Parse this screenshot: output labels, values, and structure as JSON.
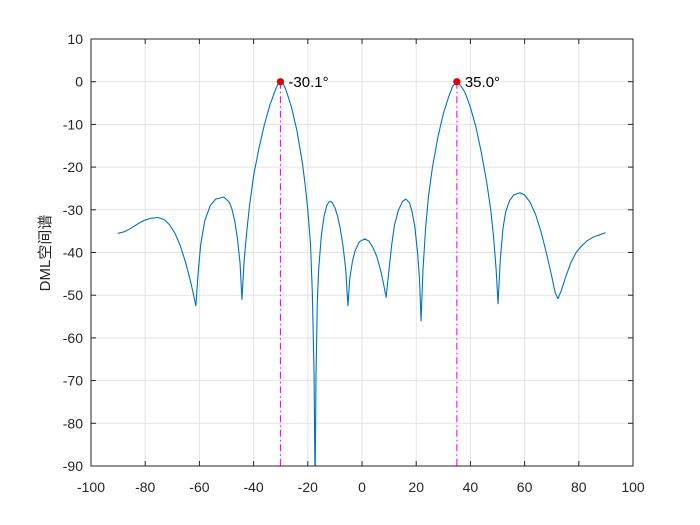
{
  "chart_data": {
    "type": "line",
    "ylabel": "DML空间谱",
    "xlim": [
      -100,
      100
    ],
    "ylim": [
      -90,
      10
    ],
    "xticks": [
      -100,
      -80,
      -60,
      -40,
      -20,
      0,
      20,
      40,
      60,
      80,
      100
    ],
    "yticks": [
      10,
      0,
      -10,
      -20,
      -30,
      -40,
      -50,
      -60,
      -70,
      -80,
      -90
    ],
    "grid": true,
    "legend": false,
    "series": [
      {
        "color": "#0072BD",
        "x": [
          -90,
          -88,
          -86,
          -84,
          -82,
          -80,
          -78,
          -75.3,
          -73,
          -71,
          -69,
          -67,
          -65,
          -63,
          -61.3,
          -60.5,
          -59.5,
          -58,
          -56,
          -54,
          -51,
          -49,
          -48,
          -47,
          -46,
          -45,
          -44.3,
          -43.5,
          -42.5,
          -41.5,
          -40,
          -38,
          -36,
          -34,
          -32,
          -31,
          -30.1,
          -29,
          -28,
          -26,
          -24,
          -22,
          -21,
          -20,
          -19,
          -18.3,
          -17.7,
          -17.3,
          -17,
          -16.5,
          -16,
          -15,
          -14,
          -13,
          -12,
          -11,
          -10,
          -9,
          -8,
          -7,
          -6,
          -5.2,
          -4.5,
          -3.5,
          -2.5,
          -1,
          1,
          2.5,
          4,
          5.5,
          7,
          8,
          8.9,
          9.8,
          11,
          12,
          13.5,
          15,
          16.2,
          17.5,
          18.5,
          19.5,
          20.5,
          21.2,
          21.8,
          22.5,
          23.5,
          24.5,
          26,
          28,
          30,
          32,
          33.5,
          35,
          36.5,
          38,
          40,
          42,
          44,
          46,
          47.5,
          48.5,
          49.5,
          50.2,
          51,
          52,
          53,
          54.5,
          56,
          58.3,
          60,
          62,
          64,
          66,
          68,
          70,
          71.3,
          72.3,
          73.5,
          75,
          77,
          79,
          81,
          83,
          85,
          87,
          89.7
        ],
        "y": [
          -35.5,
          -35.2,
          -34.6,
          -33.8,
          -33,
          -32.4,
          -32,
          -31.8,
          -32.3,
          -33.5,
          -35.5,
          -38.5,
          -42.5,
          -47.5,
          -52.5,
          -45,
          -38,
          -32.5,
          -29,
          -27.5,
          -27,
          -28.2,
          -29.8,
          -32.5,
          -36.5,
          -42.5,
          -51,
          -42,
          -35,
          -29,
          -22,
          -15.5,
          -10,
          -5.5,
          -2,
          -0.5,
          0,
          -0.6,
          -2,
          -6,
          -11.5,
          -19,
          -24,
          -30,
          -38,
          -50,
          -68,
          -95,
          -70,
          -52,
          -44,
          -36,
          -31.5,
          -29,
          -28,
          -28.3,
          -29.5,
          -31.5,
          -34.5,
          -38.5,
          -44,
          -52.5,
          -46,
          -42,
          -39.5,
          -37.5,
          -36.8,
          -37.3,
          -38.8,
          -41,
          -44.5,
          -47.5,
          -50.5,
          -45,
          -38,
          -33.5,
          -30,
          -28,
          -27.5,
          -28.3,
          -30.5,
          -34,
          -40,
          -46,
          -56,
          -44,
          -34,
          -27,
          -20,
          -13,
          -7.5,
          -3.5,
          -1,
          0,
          -1,
          -2.5,
          -6,
          -10.5,
          -16.5,
          -23.5,
          -30,
          -36,
          -44,
          -52,
          -42,
          -34.5,
          -30.5,
          -27.8,
          -26.5,
          -26,
          -26.5,
          -28.2,
          -31,
          -35,
          -40,
          -45.5,
          -49.5,
          -50.8,
          -49,
          -46,
          -42.5,
          -40,
          -38.5,
          -37.3,
          -36.5,
          -36,
          -35.4
        ]
      }
    ],
    "peaks": [
      {
        "x": -30.1,
        "y": 0,
        "label": "-30.1°"
      },
      {
        "x": 35.0,
        "y": 0,
        "label": "35.0°"
      }
    ],
    "peak_marker_color": "#e00000",
    "peak_line_color": "#ff00ff",
    "grid_color": "#e3e3e3",
    "axis_color": "#262626"
  }
}
